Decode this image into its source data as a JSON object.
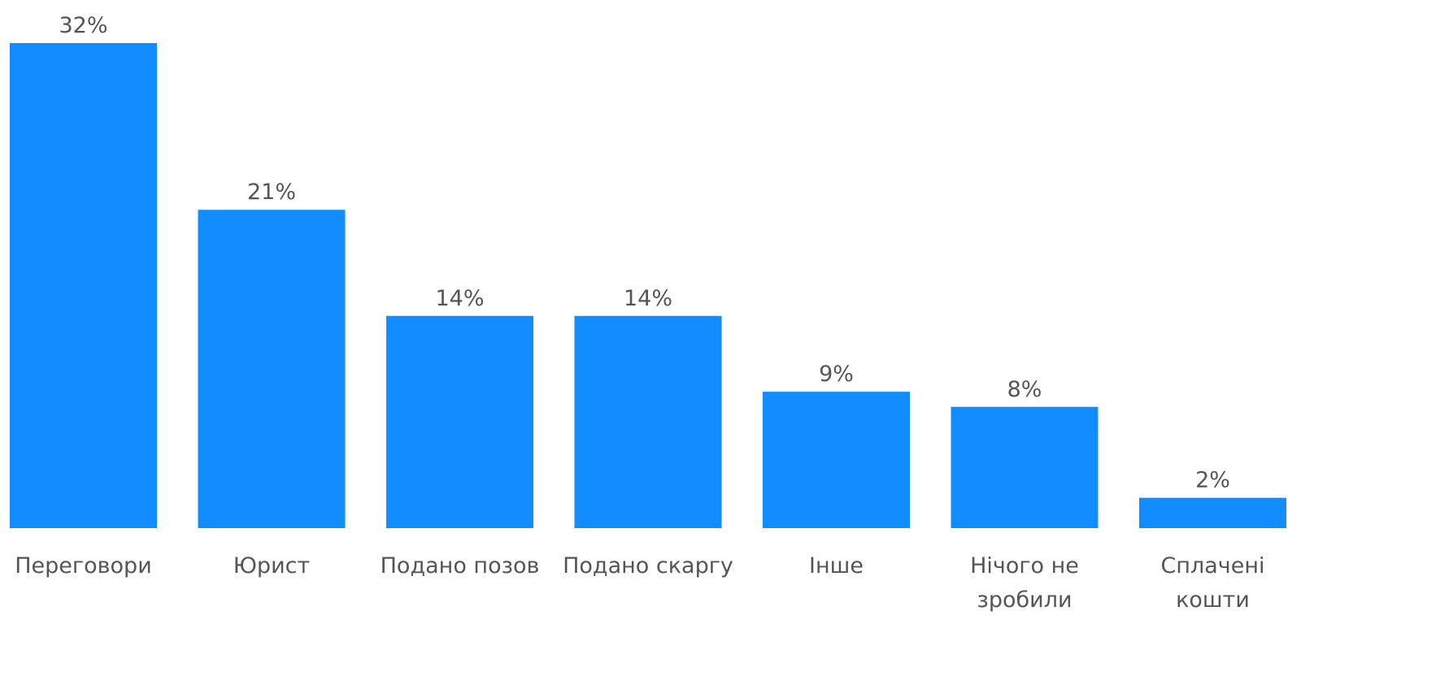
{
  "chart_data": {
    "type": "bar",
    "categories": [
      [
        "Переговори"
      ],
      [
        "Юрист"
      ],
      [
        "Подано позов"
      ],
      [
        "Подано скаргу"
      ],
      [
        "Інше"
      ],
      [
        "Нічого не",
        "зробили"
      ],
      [
        "Сплачені",
        "кошти"
      ]
    ],
    "values": [
      32,
      21,
      14,
      14,
      9,
      8,
      2
    ],
    "data_labels": [
      "32%",
      "21%",
      "14%",
      "14%",
      "9%",
      "8%",
      "2%"
    ],
    "title": "",
    "xlabel": "",
    "ylabel": "",
    "ylim": [
      0,
      32
    ],
    "grid": false,
    "legend": "none",
    "bar_color": "#118dff"
  }
}
